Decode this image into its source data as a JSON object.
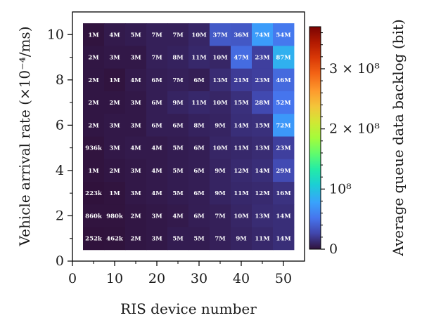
{
  "chart_data": {
    "type": "heatmap",
    "title": "",
    "xlabel": "RIS device number",
    "ylabel": "Vehicle arrival rate (×10⁻⁴/ms)",
    "colorbar_label": "Average queue data backlog (bit)",
    "x_categories": [
      5,
      10,
      15,
      20,
      25,
      30,
      35,
      40,
      45,
      50
    ],
    "y_categories": [
      1,
      2,
      3,
      4,
      5,
      6,
      7,
      8,
      9,
      10
    ],
    "xlim": [
      0,
      55
    ],
    "ylim": [
      0,
      11
    ],
    "x_ticks": [
      "0",
      "10",
      "20",
      "30",
      "40",
      "50"
    ],
    "y_ticks": [
      "0",
      "2",
      "4",
      "6",
      "8",
      "10"
    ],
    "colorbar_range": [
      0,
      370000000
    ],
    "colorbar_ticks": [
      "0",
      "10⁸",
      "2 × 10⁸",
      "3 × 10⁸"
    ],
    "colormap": "turbo",
    "grid": false,
    "rows": [
      {
        "y": 10,
        "labels": [
          "1M",
          "4M",
          "5M",
          "7M",
          "7M",
          "10M",
          "37M",
          "36M",
          "74M",
          "54M"
        ]
      },
      {
        "y": 9,
        "labels": [
          "2M",
          "3M",
          "3M",
          "7M",
          "8M",
          "11M",
          "10M",
          "47M",
          "23M",
          "87M"
        ]
      },
      {
        "y": 8,
        "labels": [
          "2M",
          "1M",
          "4M",
          "6M",
          "7M",
          "6M",
          "13M",
          "21M",
          "23M",
          "46M"
        ]
      },
      {
        "y": 7,
        "labels": [
          "2M",
          "2M",
          "3M",
          "6M",
          "9M",
          "11M",
          "10M",
          "15M",
          "28M",
          "52M"
        ]
      },
      {
        "y": 6,
        "labels": [
          "2M",
          "3M",
          "3M",
          "6M",
          "6M",
          "8M",
          "9M",
          "14M",
          "15M",
          "72M"
        ]
      },
      {
        "y": 5,
        "labels": [
          "936k",
          "3M",
          "4M",
          "4M",
          "5M",
          "6M",
          "10M",
          "11M",
          "13M",
          "23M"
        ]
      },
      {
        "y": 4,
        "labels": [
          "1M",
          "2M",
          "3M",
          "4M",
          "5M",
          "6M",
          "9M",
          "12M",
          "14M",
          "29M"
        ]
      },
      {
        "y": 3,
        "labels": [
          "223k",
          "1M",
          "3M",
          "4M",
          "5M",
          "6M",
          "9M",
          "11M",
          "12M",
          "16M"
        ]
      },
      {
        "y": 2,
        "labels": [
          "860k",
          "980k",
          "2M",
          "3M",
          "4M",
          "6M",
          "7M",
          "10M",
          "13M",
          "14M"
        ]
      },
      {
        "y": 1,
        "labels": [
          "252k",
          "462k",
          "2M",
          "3M",
          "5M",
          "5M",
          "7M",
          "9M",
          "11M",
          "14M"
        ]
      }
    ]
  }
}
